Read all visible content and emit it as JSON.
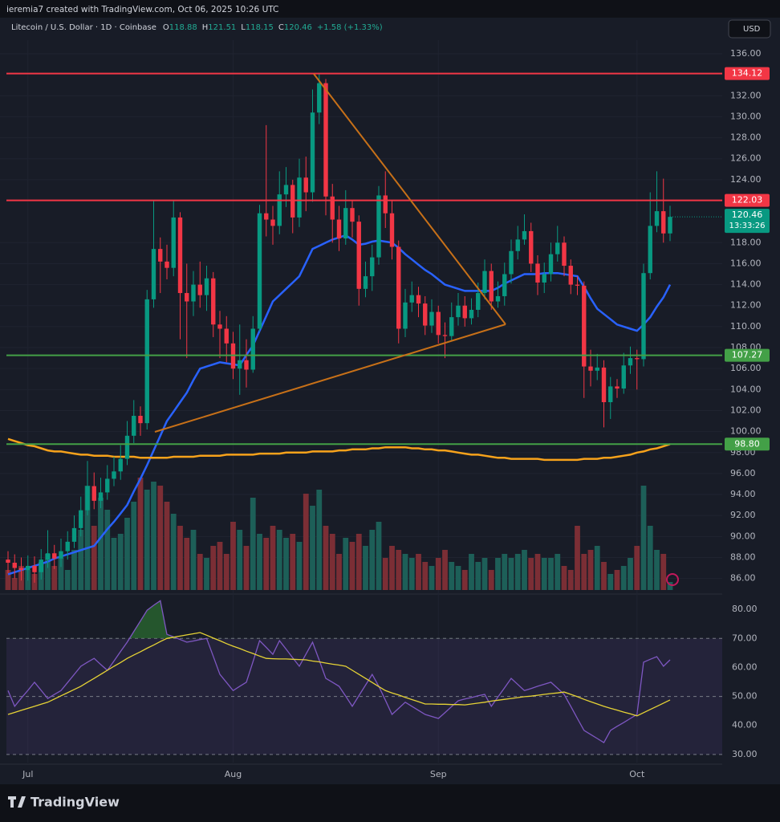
{
  "header": {
    "credit": "ieremia7 created with TradingView.com, Oct 06, 2025 10:26 UTC",
    "currency": "USD",
    "brand": "TradingView",
    "ohlc_labels": [
      "O",
      "H",
      "L",
      "C"
    ]
  },
  "chart_data": {
    "type": "candlestick",
    "title": "Litecoin / U.S. Dollar · 1D · Coinbase",
    "change": "+1.58 (+1.33%)",
    "countdown": "13:33:26",
    "categories": [
      null,
      null,
      null,
      "Jul",
      null,
      null,
      null,
      null,
      null,
      null,
      null,
      null,
      null,
      null,
      null,
      null,
      null,
      null,
      null,
      null,
      null,
      null,
      null,
      null,
      null,
      null,
      null,
      null,
      null,
      null,
      null,
      null,
      null,
      null,
      "Aug",
      null,
      null,
      null,
      null,
      null,
      null,
      null,
      null,
      null,
      null,
      null,
      null,
      null,
      null,
      null,
      null,
      null,
      null,
      null,
      null,
      null,
      null,
      null,
      null,
      null,
      null,
      null,
      null,
      null,
      null,
      "Sep",
      null,
      null,
      null,
      null,
      null,
      null,
      null,
      null,
      null,
      null,
      null,
      null,
      null,
      null,
      null,
      null,
      null,
      null,
      null,
      null,
      null,
      null,
      null,
      null,
      null,
      null,
      null,
      null,
      null,
      "Oct",
      null,
      null,
      null,
      null,
      null
    ],
    "open": [
      87.8,
      87.5,
      87.0,
      86.8,
      87.2,
      86.6,
      87.8,
      88.4,
      87.9,
      88.6,
      89.5,
      90.8,
      92.5,
      94.8,
      93.4,
      94.2,
      95.5,
      96.2,
      97.4,
      99.6,
      101.5,
      100.8,
      112.6,
      117.4,
      116.2,
      115.6,
      120.4,
      113.2,
      112.4,
      114.0,
      113.0,
      114.6,
      110.2,
      109.8,
      108.4,
      106.0,
      106.8,
      105.9,
      109.8,
      120.8,
      120.2,
      119.6,
      122.6,
      123.5,
      120.4,
      124.2,
      122.8,
      130.4,
      133.2,
      122.4,
      120.2,
      118.4,
      121.3,
      120.0,
      113.6,
      114.8,
      116.6,
      122.5,
      120.8,
      117.6,
      109.8,
      112.3,
      113.0,
      112.2,
      110.1,
      111.4,
      109.2,
      109.1,
      110.9,
      112.0,
      110.8,
      111.6,
      113.2,
      115.3,
      112.4,
      112.9,
      115.0,
      117.2,
      118.3,
      119.1,
      116.0,
      114.2,
      115.0,
      116.9,
      118.0,
      115.8,
      114.0,
      113.9,
      106.2,
      105.8,
      106.1,
      102.8,
      104.3,
      104.1,
      106.3,
      107.0,
      106.9,
      115.1,
      119.6,
      121.0,
      118.88
    ],
    "high": [
      88.6,
      88.3,
      88.0,
      88.2,
      88.1,
      88.8,
      90.6,
      89.2,
      89.8,
      90.5,
      92.0,
      93.8,
      97.2,
      96.1,
      95.6,
      96.8,
      97.6,
      98.7,
      101.0,
      103.0,
      102.4,
      113.5,
      122.0,
      118.5,
      117.8,
      122.0,
      120.9,
      116.0,
      115.3,
      116.2,
      115.8,
      115.2,
      111.5,
      111.0,
      109.5,
      110.2,
      108.8,
      111.0,
      121.6,
      129.2,
      121.5,
      124.8,
      125.2,
      124.0,
      126.0,
      126.2,
      132.6,
      134.1,
      133.6,
      123.6,
      121.5,
      123.0,
      122.0,
      120.6,
      116.2,
      117.8,
      123.4,
      124.8,
      122.0,
      118.2,
      113.6,
      114.3,
      113.8,
      112.9,
      112.6,
      112.0,
      110.4,
      112.3,
      113.2,
      112.9,
      112.7,
      114.2,
      116.4,
      116.0,
      114.3,
      116.1,
      118.3,
      119.6,
      120.7,
      119.9,
      116.8,
      116.1,
      118.0,
      119.6,
      118.6,
      116.4,
      114.8,
      114.3,
      107.8,
      107.4,
      106.8,
      105.2,
      105.0,
      107.5,
      108.1,
      107.8,
      116.0,
      122.8,
      124.8,
      124.1,
      121.51
    ],
    "low": [
      86.5,
      86.0,
      85.8,
      85.8,
      85.6,
      85.9,
      87.0,
      86.9,
      87.1,
      87.8,
      88.9,
      90.0,
      92.0,
      92.6,
      92.7,
      93.5,
      94.8,
      95.4,
      96.8,
      98.9,
      99.6,
      100.2,
      111.8,
      113.2,
      114.5,
      114.8,
      108.8,
      107.0,
      111.0,
      111.8,
      111.5,
      109.0,
      107.0,
      106.6,
      105.0,
      103.5,
      104.2,
      105.6,
      109.5,
      118.6,
      117.8,
      118.8,
      121.4,
      118.9,
      119.5,
      121.0,
      121.9,
      129.3,
      120.6,
      118.0,
      117.2,
      117.8,
      118.5,
      112.0,
      112.8,
      113.4,
      115.9,
      119.4,
      116.4,
      108.4,
      109.0,
      111.4,
      110.9,
      109.2,
      109.4,
      108.4,
      107.0,
      108.6,
      110.1,
      110.0,
      110.2,
      110.9,
      112.6,
      111.6,
      111.8,
      112.0,
      114.1,
      116.4,
      117.8,
      115.2,
      113.0,
      113.2,
      114.3,
      116.2,
      114.8,
      113.1,
      113.0,
      103.2,
      104.3,
      104.9,
      100.4,
      101.2,
      103.2,
      103.6,
      105.5,
      104.0,
      106.2,
      114.5,
      119.0,
      118.0,
      118.15
    ],
    "close": [
      87.5,
      87.0,
      86.8,
      87.2,
      86.6,
      87.8,
      88.4,
      87.9,
      88.6,
      89.5,
      90.8,
      92.5,
      94.8,
      93.4,
      94.2,
      95.5,
      96.2,
      97.4,
      99.6,
      101.5,
      100.8,
      112.6,
      117.4,
      116.2,
      115.6,
      120.4,
      113.2,
      112.4,
      114.0,
      113.0,
      114.6,
      110.2,
      109.8,
      108.4,
      106.0,
      106.8,
      105.9,
      109.8,
      120.8,
      120.2,
      119.6,
      122.6,
      123.5,
      120.4,
      124.2,
      122.8,
      130.4,
      133.2,
      122.4,
      120.2,
      118.4,
      121.3,
      120.0,
      113.6,
      114.8,
      116.6,
      122.5,
      120.8,
      117.6,
      109.8,
      112.3,
      113.0,
      112.2,
      110.1,
      111.4,
      109.2,
      109.1,
      110.9,
      112.0,
      110.8,
      111.6,
      113.2,
      115.3,
      112.4,
      112.9,
      115.0,
      117.2,
      118.3,
      119.1,
      116.0,
      114.2,
      115.0,
      116.9,
      118.0,
      115.8,
      114.0,
      113.9,
      106.2,
      105.8,
      106.1,
      102.8,
      104.3,
      104.1,
      106.3,
      107.0,
      106.9,
      115.1,
      119.6,
      121.0,
      118.88,
      120.46
    ],
    "volume": [
      25,
      15,
      30,
      25,
      20,
      35,
      45,
      30,
      40,
      25,
      50,
      75,
      130,
      80,
      115,
      100,
      65,
      70,
      90,
      110,
      140,
      125,
      135,
      130,
      110,
      95,
      80,
      65,
      75,
      45,
      40,
      55,
      60,
      45,
      85,
      75,
      55,
      115,
      70,
      65,
      80,
      75,
      65,
      70,
      60,
      120,
      105,
      125,
      80,
      70,
      45,
      65,
      60,
      70,
      55,
      75,
      85,
      40,
      55,
      50,
      45,
      40,
      45,
      35,
      30,
      40,
      50,
      35,
      30,
      25,
      45,
      35,
      40,
      25,
      40,
      45,
      40,
      45,
      50,
      40,
      45,
      40,
      40,
      45,
      30,
      25,
      80,
      45,
      50,
      55,
      35,
      20,
      25,
      30,
      40,
      55,
      130,
      80,
      50,
      45,
      10
    ],
    "up_color": "#089981",
    "down_color": "#f23645",
    "volume_up_color": "#1d5f58",
    "volume_down_color": "#7b2e35",
    "lines": [
      {
        "color": "#2962ff",
        "values": [
          86.4,
          86.6,
          86.8,
          87.0,
          87.2,
          87.4,
          87.6,
          87.9,
          88.1,
          88.3,
          88.5,
          88.7,
          88.9,
          89.1,
          89.9,
          90.7,
          91.4,
          92.2,
          93.0,
          94.3,
          95.5,
          96.8,
          98.2,
          99.6,
          101.0,
          101.9,
          102.8,
          103.7,
          104.9,
          106.0,
          106.2,
          106.4,
          106.6,
          106.5,
          106.4,
          106.3,
          107.3,
          108.2,
          109.6,
          111.0,
          112.4,
          113.0,
          113.6,
          114.2,
          114.8,
          116.1,
          117.4,
          117.7,
          118.0,
          118.3,
          118.5,
          118.7,
          118.3,
          117.8,
          117.9,
          118.1,
          118.2,
          118.1,
          118.0,
          117.5,
          116.9,
          116.4,
          115.9,
          115.4,
          115.0,
          114.5,
          114.0,
          113.8,
          113.6,
          113.4,
          113.4,
          113.4,
          113.4,
          113.4,
          113.7,
          114.1,
          114.4,
          114.7,
          115.0,
          115.0,
          115.0,
          115.1,
          115.1,
          115.1,
          115.0,
          114.9,
          114.8,
          113.8,
          112.7,
          111.7,
          111.2,
          110.7,
          110.2,
          110.0,
          109.8,
          109.6,
          110.2,
          110.9,
          111.9,
          112.8,
          114.0
        ]
      },
      {
        "color": "#f7a21b",
        "values": [
          99.3,
          99.1,
          98.9,
          98.7,
          98.6,
          98.4,
          98.2,
          98.1,
          98.1,
          98.0,
          97.9,
          97.8,
          97.8,
          97.7,
          97.7,
          97.7,
          97.6,
          97.6,
          97.6,
          97.6,
          97.5,
          97.5,
          97.5,
          97.5,
          97.5,
          97.6,
          97.6,
          97.6,
          97.6,
          97.7,
          97.7,
          97.7,
          97.7,
          97.8,
          97.8,
          97.8,
          97.8,
          97.8,
          97.9,
          97.9,
          97.9,
          97.9,
          98.0,
          98.0,
          98.0,
          98.0,
          98.1,
          98.1,
          98.1,
          98.1,
          98.2,
          98.2,
          98.3,
          98.3,
          98.3,
          98.4,
          98.4,
          98.5,
          98.5,
          98.5,
          98.5,
          98.4,
          98.4,
          98.3,
          98.3,
          98.2,
          98.2,
          98.1,
          98.0,
          97.9,
          97.8,
          97.8,
          97.7,
          97.6,
          97.5,
          97.5,
          97.4,
          97.4,
          97.4,
          97.4,
          97.4,
          97.3,
          97.3,
          97.3,
          97.3,
          97.3,
          97.3,
          97.4,
          97.4,
          97.4,
          97.5,
          97.5,
          97.6,
          97.7,
          97.8,
          98.0,
          98.1,
          98.3,
          98.4,
          98.6,
          98.8
        ]
      }
    ],
    "hlines": [
      {
        "value": 134.12,
        "color": "#f23645"
      },
      {
        "value": 122.03,
        "color": "#f23645"
      },
      {
        "value": 107.27,
        "color": "#43a047"
      },
      {
        "value": 98.8,
        "label": "98.80",
        "color": "#43a047"
      }
    ],
    "ylim": [
      84.9,
      137.3
    ],
    "yticks": [
      {
        "value": 136,
        "label": "136.00"
      },
      {
        "value": 132,
        "label": "132.00"
      },
      {
        "value": 130,
        "label": "130.00"
      },
      {
        "value": 128,
        "label": "128.00"
      },
      {
        "value": 126,
        "label": "126.00"
      },
      {
        "value": 124,
        "label": "124.00"
      },
      {
        "value": 118,
        "label": "118.00"
      },
      {
        "value": 116,
        "label": "116.00"
      },
      {
        "value": 114,
        "label": "114.00"
      },
      {
        "value": 112,
        "label": "112.00"
      },
      {
        "value": 110,
        "label": "110.00"
      },
      {
        "value": 108,
        "label": "108.00"
      },
      {
        "value": 106,
        "label": "106.00"
      },
      {
        "value": 104,
        "label": "104.00"
      },
      {
        "value": 102,
        "label": "102.00"
      },
      {
        "value": 100,
        "label": "100.00"
      },
      {
        "value": 98,
        "label": "98.00"
      },
      {
        "value": 96,
        "label": "96.00"
      },
      {
        "value": 94,
        "label": "94.00"
      },
      {
        "value": 92,
        "label": "92.00"
      },
      {
        "value": 90,
        "label": "90.00"
      },
      {
        "value": 88,
        "label": "88.00"
      },
      {
        "value": 86,
        "label": "86.00"
      }
    ],
    "grid": true,
    "rsi": {
      "color": "#7e57c2",
      "ma_color": "#e6d335",
      "overbought_color": "#2e7d32",
      "ylim": [
        27.2,
        83.9
      ],
      "band": [
        30,
        70
      ],
      "levels": [
        70,
        50,
        30
      ],
      "yticks": [
        {
          "value": 80,
          "label": "80.00"
        },
        {
          "value": 70,
          "label": "70.00"
        },
        {
          "value": 60,
          "label": "60.00"
        },
        {
          "value": 50,
          "label": "50.00"
        },
        {
          "value": 40,
          "label": "40.00"
        },
        {
          "value": 30,
          "label": "30.00"
        }
      ],
      "values": [
        52.0,
        46.6,
        49.4,
        52.1,
        54.9,
        52.1,
        49.3,
        50.7,
        52.0,
        54.8,
        57.6,
        60.4,
        61.8,
        63.1,
        61.0,
        59.0,
        62.2,
        65.5,
        68.7,
        72.4,
        76.0,
        79.7,
        81.4,
        83.0,
        71.4,
        70.5,
        69.6,
        68.7,
        69.1,
        69.6,
        70.0,
        63.8,
        57.6,
        54.8,
        52.0,
        53.5,
        54.9,
        62.0,
        69.2,
        66.9,
        64.5,
        69.2,
        66.3,
        63.3,
        60.4,
        64.6,
        68.7,
        62.5,
        56.2,
        54.9,
        53.5,
        50.1,
        46.6,
        50.3,
        53.9,
        57.6,
        53.5,
        48.7,
        43.8,
        45.9,
        48.0,
        46.6,
        45.2,
        43.8,
        43.1,
        42.4,
        44.4,
        46.5,
        48.5,
        49.1,
        49.6,
        50.2,
        50.7,
        46.6,
        49.8,
        53.0,
        56.2,
        54.1,
        52.0,
        52.7,
        53.5,
        54.2,
        54.9,
        52.8,
        50.7,
        46.6,
        42.4,
        38.3,
        36.9,
        35.5,
        34.1,
        38.3,
        39.7,
        41.0,
        42.4,
        43.8,
        61.8,
        62.8,
        63.7,
        60.4,
        62.6
      ],
      "ma": [
        43.8,
        44.5,
        45.2,
        45.9,
        46.6,
        47.3,
        48.0,
        49.1,
        50.2,
        51.3,
        52.4,
        53.5,
        54.9,
        56.2,
        57.6,
        59.0,
        60.4,
        61.7,
        63.1,
        64.3,
        65.4,
        66.6,
        67.7,
        68.9,
        70.0,
        70.4,
        70.8,
        71.2,
        71.6,
        72.0,
        71.1,
        70.1,
        69.2,
        68.2,
        67.3,
        66.5,
        65.6,
        64.8,
        63.9,
        63.1,
        63.0,
        62.9,
        62.9,
        62.8,
        62.7,
        62.6,
        62.2,
        61.9,
        61.5,
        61.1,
        60.8,
        60.4,
        59.0,
        57.6,
        56.2,
        54.8,
        53.4,
        52.0,
        51.2,
        50.5,
        49.7,
        48.9,
        48.2,
        47.4,
        47.4,
        47.3,
        47.3,
        47.2,
        47.2,
        47.1,
        47.4,
        47.7,
        48.0,
        48.4,
        48.7,
        49.0,
        49.3,
        49.6,
        49.9,
        50.1,
        50.4,
        50.7,
        51.0,
        51.2,
        51.5,
        50.7,
        49.9,
        49.0,
        48.2,
        47.4,
        46.6,
        45.9,
        45.3,
        44.6,
        44.0,
        43.3,
        44.4,
        45.5,
        46.6,
        47.7,
        48.8
      ]
    }
  }
}
